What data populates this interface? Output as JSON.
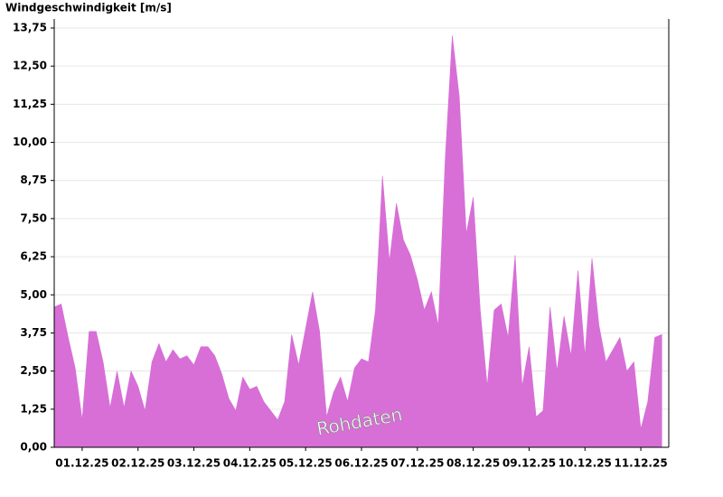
{
  "chart_data": {
    "type": "area",
    "title": "Windgeschwindigkeit [m/s]",
    "annotation": "Rohdaten",
    "color": "#d76fd7",
    "grid": true,
    "x": [
      0,
      0.125,
      0.25,
      0.375,
      0.5,
      0.625,
      0.75,
      0.875,
      1,
      1.125,
      1.25,
      1.375,
      1.5,
      1.625,
      1.75,
      1.875,
      2,
      2.125,
      2.25,
      2.375,
      2.5,
      2.625,
      2.75,
      2.875,
      3,
      3.125,
      3.25,
      3.375,
      3.5,
      3.625,
      3.75,
      3.875,
      4,
      4.125,
      4.25,
      4.375,
      4.5,
      4.625,
      4.75,
      4.875,
      5,
      5.125,
      5.25,
      5.375,
      5.5,
      5.625,
      5.75,
      5.875,
      6,
      6.125,
      6.25,
      6.375,
      6.5,
      6.625,
      6.75,
      6.875,
      7,
      7.125,
      7.25,
      7.375,
      7.5,
      7.625,
      7.75,
      7.875,
      8,
      8.125,
      8.25,
      8.375,
      8.5,
      8.625,
      8.75,
      8.875,
      9,
      9.125,
      9.25,
      9.375,
      9.5,
      9.625,
      9.75,
      9.875,
      10,
      10.125,
      10.25,
      10.375,
      10.5,
      10.625,
      10.75,
      10.875
    ],
    "values": [
      4.6,
      4.7,
      3.6,
      2.6,
      0.9,
      3.8,
      3.8,
      2.8,
      1.3,
      2.5,
      1.3,
      2.5,
      2.0,
      1.2,
      2.8,
      3.4,
      2.8,
      3.2,
      2.9,
      3.0,
      2.7,
      3.3,
      3.3,
      3.0,
      2.4,
      1.6,
      1.2,
      2.3,
      1.9,
      2.0,
      1.5,
      1.2,
      0.9,
      1.5,
      3.7,
      2.7,
      3.9,
      5.1,
      3.8,
      1.0,
      1.8,
      2.3,
      1.5,
      2.6,
      2.9,
      2.8,
      4.5,
      8.9,
      6.1,
      8.0,
      6.8,
      6.3,
      5.5,
      4.5,
      5.1,
      4.0,
      9.5,
      13.5,
      11.5,
      7.0,
      8.2,
      4.5,
      2.0,
      4.5,
      4.7,
      3.6,
      6.3,
      2.0,
      3.3,
      1.0,
      1.2,
      4.6,
      2.5,
      4.3,
      3.0,
      5.8,
      3.0,
      6.2,
      4.0,
      2.8,
      3.2,
      3.6,
      2.5,
      2.8,
      0.6,
      1.5,
      3.6,
      3.7
    ],
    "xlim": [
      0,
      11
    ],
    "xticks": [
      {
        "value": 0.5,
        "label": "01.12.25"
      },
      {
        "value": 1.5,
        "label": "02.12.25"
      },
      {
        "value": 2.5,
        "label": "03.12.25"
      },
      {
        "value": 3.5,
        "label": "04.12.25"
      },
      {
        "value": 4.5,
        "label": "05.12.25"
      },
      {
        "value": 5.5,
        "label": "06.12.25"
      },
      {
        "value": 6.5,
        "label": "07.12.25"
      },
      {
        "value": 7.5,
        "label": "08.12.25"
      },
      {
        "value": 8.5,
        "label": "09.12.25"
      },
      {
        "value": 9.5,
        "label": "10.12.25"
      },
      {
        "value": 10.5,
        "label": "11.12.25"
      }
    ],
    "ylim": [
      0,
      13.75
    ],
    "yticks": [
      {
        "value": 0,
        "label": "0,00"
      },
      {
        "value": 1.25,
        "label": "1,25"
      },
      {
        "value": 2.5,
        "label": "2,50"
      },
      {
        "value": 3.75,
        "label": "3,75"
      },
      {
        "value": 5,
        "label": "5,00"
      },
      {
        "value": 6.25,
        "label": "6,25"
      },
      {
        "value": 7.5,
        "label": "7,50"
      },
      {
        "value": 8.75,
        "label": "8,75"
      },
      {
        "value": 10,
        "label": "10,00"
      },
      {
        "value": 11.25,
        "label": "11,25"
      },
      {
        "value": 12.5,
        "label": "12,50"
      },
      {
        "value": 13.75,
        "label": "13,75"
      }
    ]
  }
}
